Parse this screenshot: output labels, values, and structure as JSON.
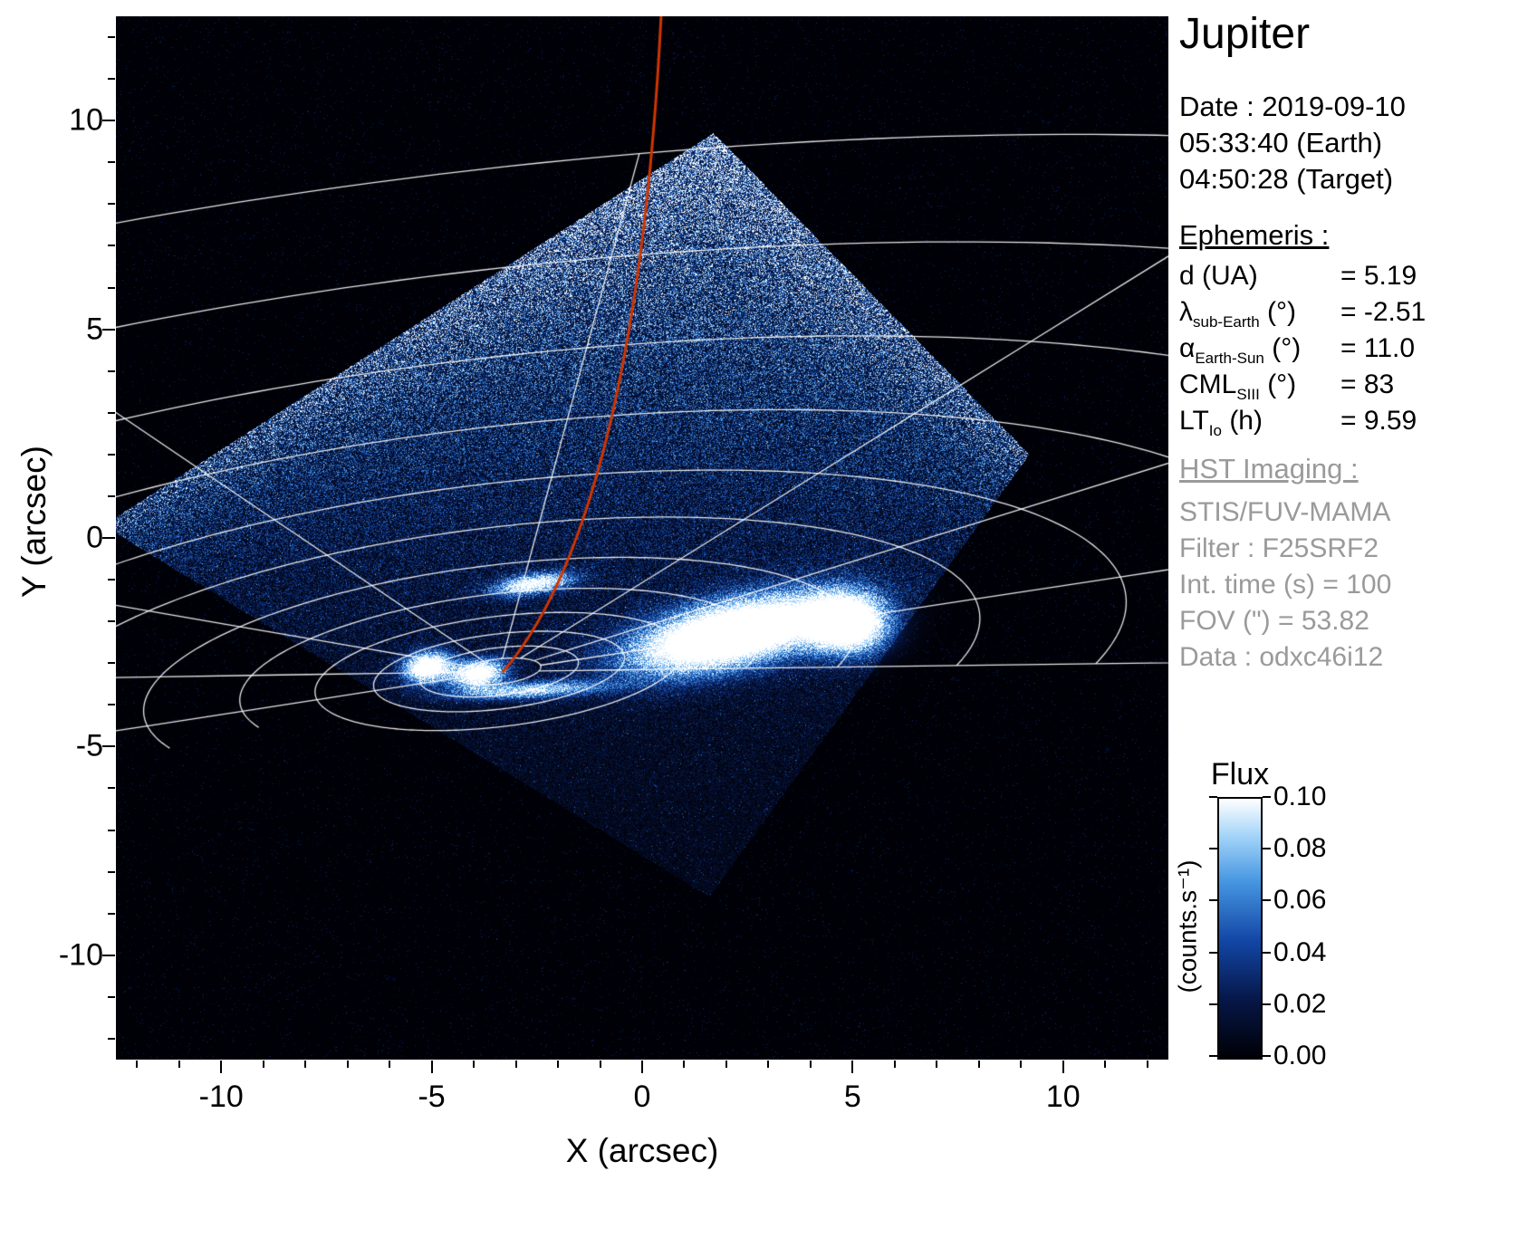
{
  "title": "Jupiter",
  "info": {
    "date_line": "Date : 2019-09-10",
    "time_earth": "05:33:40 (Earth)",
    "time_target": "04:50:28 (Target)",
    "ephemeris_header": "Ephemeris :",
    "ephemeris": [
      {
        "sym": "d",
        "sub": "",
        "unit": "(UA)",
        "value": "= 5.19"
      },
      {
        "sym": "λ",
        "sub": "sub-Earth",
        "unit": "(°)",
        "value": "= -2.51"
      },
      {
        "sym": "α",
        "sub": "Earth-Sun",
        "unit": "(°)",
        "value": "= 11.0"
      },
      {
        "sym": "CML",
        "sub": "SIII",
        "unit": "(°)",
        "value": "= 83"
      },
      {
        "sym": "LT",
        "sub": "Io",
        "unit": "(h)",
        "value": "= 9.59"
      }
    ],
    "hst_header": "HST Imaging :",
    "hst_lines": [
      "STIS/FUV-MAMA",
      "Filter : F25SRF2",
      "Int. time (s) = 100",
      "FOV (\") = 53.82",
      "Data : odxc46i12"
    ]
  },
  "colorbar": {
    "title": "Flux",
    "unit": "(counts.s⁻¹)",
    "ticks": [
      "0.00",
      "0.02",
      "0.04",
      "0.06",
      "0.08",
      "0.10"
    ],
    "min": 0.0,
    "max": 0.1
  },
  "chart_data": {
    "type": "heatmap",
    "title": "Jupiter",
    "xlabel": "X (arcsec)",
    "ylabel": "Y (arcsec)",
    "xlim": [
      -12.5,
      12.5
    ],
    "ylim": [
      -12.5,
      12.5
    ],
    "xticks": [
      -10,
      -5,
      0,
      5,
      10
    ],
    "yticks": [
      -10,
      -5,
      0,
      5,
      10
    ],
    "minor_tick_step": 1,
    "flux_label": "Flux",
    "flux_unit": "counts.s-1",
    "flux_range": [
      0.0,
      0.1
    ],
    "flux_tick_values": [
      0.0,
      0.02,
      0.04,
      0.06,
      0.08,
      0.1
    ],
    "grid_on": true,
    "legend_position": "none",
    "description": "HST STIS FUV image of Jupiter northern UV aurora; rotated-square detector footprint filled with blue counts noise, white auroral ovals near planetographic grid pole, white planetary graticule, red meridian line",
    "colormap_stops": [
      {
        "t": 0.0,
        "color": [
          0,
          0,
          5
        ]
      },
      {
        "t": 0.22,
        "color": [
          6,
          22,
          70
        ]
      },
      {
        "t": 0.45,
        "color": [
          18,
          70,
          165
        ]
      },
      {
        "t": 0.68,
        "color": [
          70,
          150,
          225
        ]
      },
      {
        "t": 0.85,
        "color": [
          160,
          210,
          248
        ]
      },
      {
        "t": 1.0,
        "color": [
          255,
          255,
          255
        ]
      }
    ],
    "detector_quad": [
      [
        1.7,
        9.7
      ],
      [
        9.2,
        2.0
      ],
      [
        1.6,
        -8.6
      ],
      [
        -12.8,
        0.3
      ]
    ],
    "pole": [
      -3.4,
      -3.2
    ],
    "graticule": {
      "parallels_a": [
        1.0,
        1.9,
        3.0,
        4.4,
        6.2,
        8.5,
        11.5,
        15,
        19.5,
        25,
        32,
        40
      ],
      "axis_ratio": 0.3,
      "tilt_deg": 7,
      "meridian_params": [
        -0.35,
        0.1,
        0.55,
        1.0,
        1.45,
        1.9,
        2.35,
        2.8,
        3.25
      ]
    },
    "aurora_blobs": [
      {
        "center": [
          2.15,
          -2.3
        ],
        "a": 3.3,
        "b": 1.05,
        "rot_deg": 13,
        "amp": 2.0
      },
      {
        "center": [
          4.85,
          -2.05
        ],
        "a": 1.3,
        "b": 0.95,
        "rot_deg": 0,
        "amp": 1.8
      },
      {
        "center": [
          -5.1,
          -3.1
        ],
        "a": 0.8,
        "b": 0.5,
        "rot_deg": 10,
        "amp": 1.5
      },
      {
        "center": [
          -3.9,
          -3.25
        ],
        "a": 0.9,
        "b": 0.45,
        "rot_deg": 8,
        "amp": 1.4
      },
      {
        "center": [
          -2.58,
          -1.1
        ],
        "a": 1.3,
        "b": 0.33,
        "rot_deg": 8,
        "amp": 1.1
      },
      {
        "center": [
          -2.7,
          -3.65
        ],
        "a": 2.5,
        "b": 0.28,
        "rot_deg": 3,
        "amp": 0.85
      }
    ],
    "red_meridian": {
      "color": "#cf3500",
      "start": [
        0.45,
        12.5
      ],
      "c1": [
        0.1,
        5.5
      ],
      "c2": [
        -1.0,
        -0.5
      ],
      "end": [
        -3.3,
        -3.2
      ]
    }
  }
}
